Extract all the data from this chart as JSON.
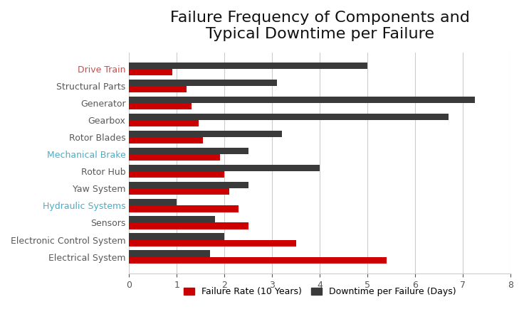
{
  "title": "Failure Frequency of Components and\nTypical Downtime per Failure",
  "categories": [
    "Drive Train",
    "Structural Parts",
    "Generator",
    "Gearbox",
    "Rotor Blades",
    "Mechanical Brake",
    "Rotor Hub",
    "Yaw System",
    "Hydraulic Systems",
    "Sensors",
    "Electronic Control System",
    "Electrical System"
  ],
  "failure_rate": [
    0.9,
    1.2,
    1.3,
    1.45,
    1.55,
    1.9,
    2.0,
    2.1,
    2.3,
    2.5,
    3.5,
    5.4
  ],
  "downtime": [
    5.0,
    3.1,
    7.25,
    6.7,
    3.2,
    2.5,
    4.0,
    2.5,
    1.0,
    1.8,
    2.0,
    1.7
  ],
  "failure_color": "#cc0000",
  "downtime_color": "#3a3a3a",
  "xlim": [
    0,
    8
  ],
  "xticks": [
    0,
    1,
    2,
    3,
    4,
    5,
    6,
    7,
    8
  ],
  "bar_height": 0.38,
  "background_color": "#ffffff",
  "grid_color": "#cccccc",
  "title_fontsize": 16,
  "label_fontsize": 9,
  "tick_fontsize": 9,
  "legend_fontsize": 9,
  "label_colors": {
    "Drive Train": "#c0504d",
    "Structural Parts": "#595959",
    "Generator": "#595959",
    "Gearbox": "#595959",
    "Rotor Blades": "#595959",
    "Mechanical Brake": "#4bacc6",
    "Rotor Hub": "#595959",
    "Yaw System": "#595959",
    "Hydraulic Systems": "#4bacc6",
    "Sensors": "#595959",
    "Electronic Control System": "#595959",
    "Electrical System": "#595959"
  }
}
